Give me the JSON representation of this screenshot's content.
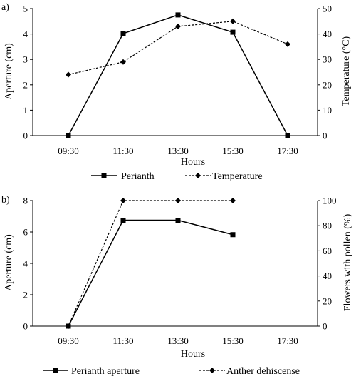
{
  "chart_data": [
    {
      "type": "line",
      "panel_label": "a)",
      "categories": [
        "09:30",
        "11:30",
        "13:30",
        "15:30",
        "17:30"
      ],
      "xlabel": "Hours",
      "ylabel_left": "Aperture (cm)",
      "ylabel_right": "Temperature (°C)",
      "ylim_left": [
        0,
        5
      ],
      "yticks_left": [
        "0",
        "1",
        "2",
        "3",
        "4",
        "5"
      ],
      "ylim_right": [
        0,
        50
      ],
      "yticks_right": [
        "0",
        "10",
        "20",
        "30",
        "40",
        "50"
      ],
      "grid": false,
      "legend_position": "bottom",
      "series": [
        {
          "name": "Perianth",
          "axis": "left",
          "style": "solid",
          "marker": "square",
          "values": [
            0,
            4.02,
            4.75,
            4.07,
            0
          ]
        },
        {
          "name": "Temperature",
          "axis": "right",
          "style": "dashed",
          "marker": "diamond",
          "values": [
            24,
            29,
            43,
            45,
            36
          ]
        }
      ]
    },
    {
      "type": "line",
      "panel_label": "b)",
      "categories": [
        "09:30",
        "11:30",
        "13:30",
        "15:30",
        "17:30"
      ],
      "xlabel": "Hours",
      "ylabel_left": "Aperture (cm)",
      "ylabel_right": "Flowers with  pollen (%)",
      "ylim_left": [
        0,
        8
      ],
      "yticks_left": [
        "0",
        "2",
        "4",
        "6",
        "8"
      ],
      "ylim_right": [
        0,
        100
      ],
      "yticks_right": [
        "0",
        "20",
        "40",
        "60",
        "80",
        "100"
      ],
      "grid": false,
      "legend_position": "bottom",
      "series": [
        {
          "name": "Perianth aperture",
          "axis": "left",
          "style": "solid",
          "marker": "square",
          "values": [
            0,
            6.75,
            6.75,
            5.83,
            null
          ]
        },
        {
          "name": "Anther dehiscense",
          "axis": "right",
          "style": "dashed",
          "marker": "diamond",
          "values": [
            0,
            100,
            100,
            100,
            null
          ]
        }
      ]
    }
  ]
}
